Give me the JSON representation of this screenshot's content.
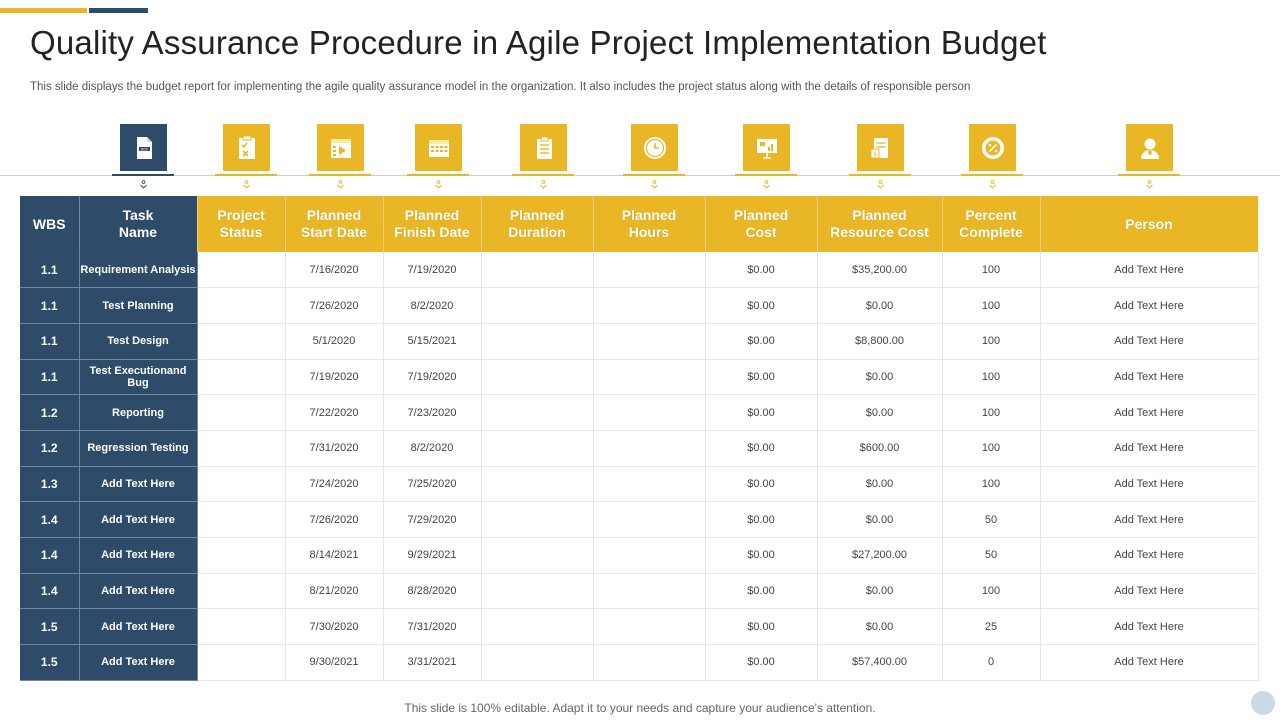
{
  "colors": {
    "accent": "#e9b725",
    "navy": "#2f4b6a"
  },
  "title": "Quality Assurance Procedure in Agile Project Implementation Budget",
  "subtitle": "This slide displays the budget report for implementing the agile quality assurance model in the organization. It also includes the project status along with the details of responsible person",
  "icons": [
    "document-icon",
    "checklist-icon",
    "calendar-play-icon",
    "calendar-icon",
    "clipboard-icon",
    "clock-icon",
    "presentation-board-icon",
    "report-cost-icon",
    "percent-badge-icon",
    "person-icon"
  ],
  "headers": [
    "WBS",
    "Task Name",
    "Project Status",
    "Planned Start Date",
    "Planned Finish Date",
    "Planned Duration",
    "Planned Hours",
    "Planned Cost",
    "Planned Resource Cost",
    "Percent Complete",
    "Person"
  ],
  "rows": [
    {
      "wbs": "1.1",
      "task": "Requirement Analysis",
      "status": "",
      "start": "7/16/2020",
      "finish": "7/19/2020",
      "duration": "",
      "hours": "",
      "cost": "$0.00",
      "resource_cost": "$35,200.00",
      "percent": "100",
      "person": "Add Text Here"
    },
    {
      "wbs": "1.1",
      "task": "Test Planning",
      "status": "",
      "start": "7/26/2020",
      "finish": "8/2/2020",
      "duration": "",
      "hours": "",
      "cost": "$0.00",
      "resource_cost": "$0.00",
      "percent": "100",
      "person": "Add Text Here"
    },
    {
      "wbs": "1.1",
      "task": "Test Design",
      "status": "",
      "start": "5/1/2020",
      "finish": "5/15/2021",
      "duration": "",
      "hours": "",
      "cost": "$0.00",
      "resource_cost": "$8,800.00",
      "percent": "100",
      "person": "Add Text Here"
    },
    {
      "wbs": "1.1",
      "task": "Test Executionand Bug",
      "status": "",
      "start": "7/19/2020",
      "finish": "7/19/2020",
      "duration": "",
      "hours": "",
      "cost": "$0.00",
      "resource_cost": "$0.00",
      "percent": "100",
      "person": "Add Text Here"
    },
    {
      "wbs": "1.2",
      "task": "Reporting",
      "status": "",
      "start": "7/22/2020",
      "finish": "7/23/2020",
      "duration": "",
      "hours": "",
      "cost": "$0.00",
      "resource_cost": "$0.00",
      "percent": "100",
      "person": "Add Text Here"
    },
    {
      "wbs": "1.2",
      "task": "Regression Testing",
      "status": "",
      "start": "7/31/2020",
      "finish": "8/2/2020",
      "duration": "",
      "hours": "",
      "cost": "$0.00",
      "resource_cost": "$600.00",
      "percent": "100",
      "person": "Add Text Here"
    },
    {
      "wbs": "1.3",
      "task": "Add Text Here",
      "status": "",
      "start": "7/24/2020",
      "finish": "7/25/2020",
      "duration": "",
      "hours": "",
      "cost": "$0.00",
      "resource_cost": "$0.00",
      "percent": "100",
      "person": "Add Text Here"
    },
    {
      "wbs": "1.4",
      "task": "Add Text Here",
      "status": "",
      "start": "7/26/2020",
      "finish": "7/29/2020",
      "duration": "",
      "hours": "",
      "cost": "$0.00",
      "resource_cost": "$0.00",
      "percent": "50",
      "person": "Add Text Here"
    },
    {
      "wbs": "1.4",
      "task": "Add Text Here",
      "status": "",
      "start": "8/14/2021",
      "finish": "9/29/2021",
      "duration": "",
      "hours": "",
      "cost": "$0.00",
      "resource_cost": "$27,200.00",
      "percent": "50",
      "person": "Add Text Here"
    },
    {
      "wbs": "1.4",
      "task": "Add Text Here",
      "status": "",
      "start": "8/21/2020",
      "finish": "8/28/2020",
      "duration": "",
      "hours": "",
      "cost": "$0.00",
      "resource_cost": "$0.00",
      "percent": "100",
      "person": "Add Text Here"
    },
    {
      "wbs": "1.5",
      "task": "Add Text Here",
      "status": "",
      "start": "7/30/2020",
      "finish": "7/31/2020",
      "duration": "",
      "hours": "",
      "cost": "$0.00",
      "resource_cost": "$0.00",
      "percent": "25",
      "person": "Add Text Here"
    },
    {
      "wbs": "1.5",
      "task": "Add Text Here",
      "status": "",
      "start": "9/30/2021",
      "finish": "3/31/2021",
      "duration": "",
      "hours": "",
      "cost": "$0.00",
      "resource_cost": "$57,400.00",
      "percent": "0",
      "person": "Add Text Here"
    }
  ],
  "footer": "This slide is 100% editable. Adapt it to your needs and capture your audience's attention."
}
